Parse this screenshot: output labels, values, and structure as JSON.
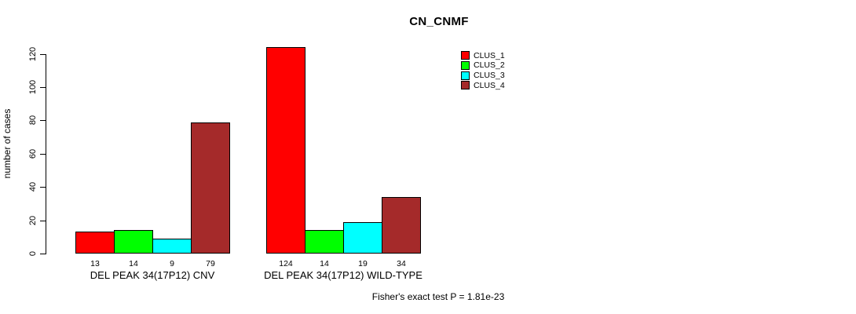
{
  "background": "#FFFFFF",
  "chart_data": {
    "type": "bar",
    "title": "CN_CNMF",
    "ylabel": "number of cases",
    "xlabel": "",
    "categories": [
      "DEL PEAK 34(17P12) CNV",
      "DEL PEAK 34(17P12) WILD-TYPE"
    ],
    "series": [
      {
        "name": "CLUS_1",
        "color": "#FF0000",
        "values": [
          13,
          124
        ]
      },
      {
        "name": "CLUS_2",
        "color": "#00FF00",
        "values": [
          14,
          14
        ]
      },
      {
        "name": "CLUS_3",
        "color": "#00FFFF",
        "values": [
          9,
          19
        ]
      },
      {
        "name": "CLUS_4",
        "color": "#A52A2A",
        "values": [
          79,
          34
        ]
      }
    ],
    "bar_value_labels_shown": true,
    "yticks": [
      0,
      20,
      40,
      60,
      80,
      100,
      120
    ],
    "ylim": [
      0,
      124
    ],
    "grid": false,
    "legend_position": "top-right",
    "annotation": "Fisher's exact test P = 1.81e-23",
    "axis_color": "#000000",
    "bar_border_color": "#000000"
  }
}
